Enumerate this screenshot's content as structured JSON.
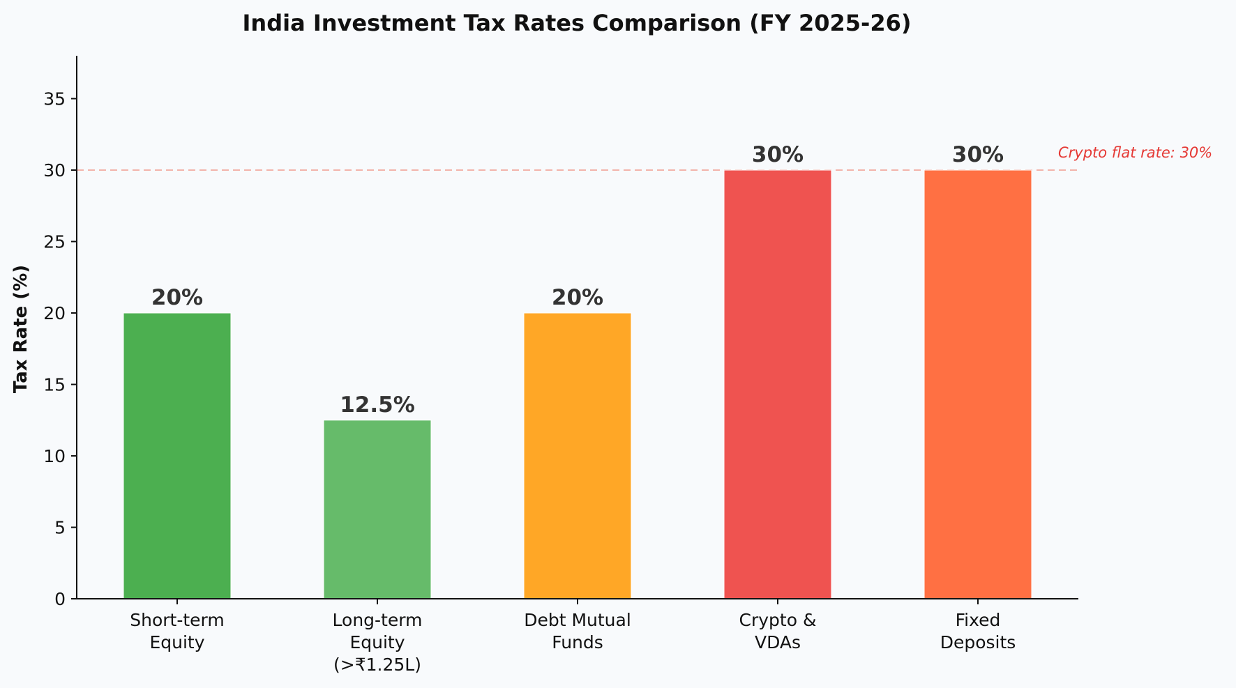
{
  "chart_data": {
    "type": "bar",
    "title": "India Investment Tax Rates Comparison (FY 2025-26)",
    "xlabel": "",
    "ylabel": "Tax Rate (%)",
    "ylim": [
      0,
      38
    ],
    "yticks": [
      0,
      5,
      10,
      15,
      20,
      25,
      30,
      35
    ],
    "grid": false,
    "categories": [
      [
        "Short-term",
        "Equity"
      ],
      [
        "Long-term",
        "Equity",
        "(>₹1.25L)"
      ],
      [
        "Debt Mutual",
        "Funds"
      ],
      [
        "Crypto &",
        "VDAs"
      ],
      [
        "Fixed",
        "Deposits"
      ]
    ],
    "values": [
      20,
      12.5,
      20,
      30,
      30
    ],
    "value_labels": [
      "20%",
      "12.5%",
      "20%",
      "30%",
      "30%"
    ],
    "bar_colors": [
      "#4caf50",
      "#66bb6a",
      "#ffa726",
      "#ef5350",
      "#ff7043"
    ],
    "reference_line": {
      "y": 30,
      "label": "Crypto flat rate: 30%",
      "color": "#e53935"
    }
  }
}
